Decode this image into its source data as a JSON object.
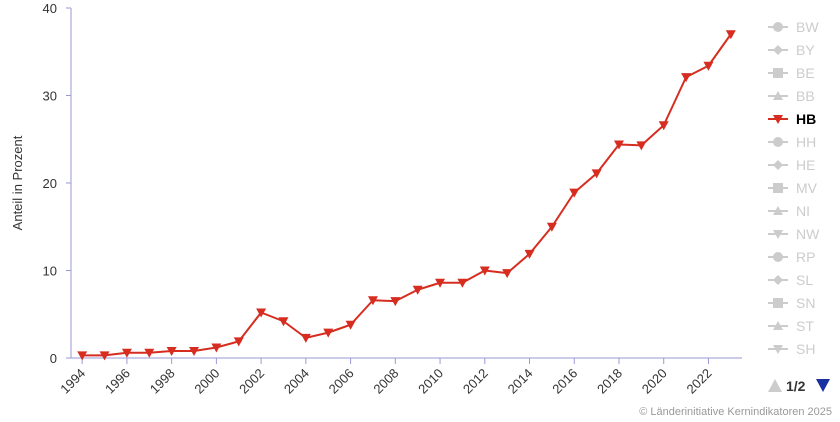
{
  "chart_data": {
    "type": "line",
    "ylabel": "Anteil in Prozent",
    "ylim": [
      0,
      40
    ],
    "yticks": [
      "0",
      "10",
      "20",
      "30",
      "40"
    ],
    "xticks": [
      "1994",
      "1996",
      "1998",
      "2000",
      "2002",
      "2004",
      "2006",
      "2008",
      "2010",
      "2012",
      "2014",
      "2016",
      "2018",
      "2020",
      "2022"
    ],
    "x": [
      1994,
      1995,
      1996,
      1997,
      1998,
      1999,
      2000,
      2001,
      2002,
      2003,
      2004,
      2005,
      2006,
      2007,
      2008,
      2009,
      2010,
      2011,
      2012,
      2013,
      2014,
      2015,
      2016,
      2017,
      2018,
      2019,
      2020,
      2021,
      2022,
      2023
    ],
    "series": [
      {
        "name": "HB",
        "color": "#d62d20",
        "marker": "triangle-down",
        "values": [
          0.3,
          0.3,
          0.6,
          0.6,
          0.8,
          0.8,
          1.2,
          1.9,
          5.2,
          4.2,
          2.3,
          2.9,
          3.8,
          6.6,
          6.5,
          7.8,
          8.6,
          8.6,
          10.0,
          9.7,
          11.9,
          15.0,
          18.9,
          21.1,
          24.4,
          24.3,
          26.6,
          32.1,
          33.4,
          37.0
        ]
      }
    ],
    "legend": {
      "position": "right",
      "page": "1/2",
      "items": [
        {
          "label": "BW",
          "marker": "circle",
          "active": false
        },
        {
          "label": "BY",
          "marker": "diamond",
          "active": false
        },
        {
          "label": "BE",
          "marker": "square",
          "active": false
        },
        {
          "label": "BB",
          "marker": "triangle-up",
          "active": false
        },
        {
          "label": "HB",
          "marker": "triangle-down",
          "active": true
        },
        {
          "label": "HH",
          "marker": "circle",
          "active": false
        },
        {
          "label": "HE",
          "marker": "diamond",
          "active": false
        },
        {
          "label": "MV",
          "marker": "square",
          "active": false
        },
        {
          "label": "NI",
          "marker": "triangle-up",
          "active": false
        },
        {
          "label": "NW",
          "marker": "triangle-down",
          "active": false
        },
        {
          "label": "RP",
          "marker": "circle",
          "active": false
        },
        {
          "label": "SL",
          "marker": "diamond",
          "active": false
        },
        {
          "label": "SN",
          "marker": "square",
          "active": false
        },
        {
          "label": "ST",
          "marker": "triangle-up",
          "active": false
        },
        {
          "label": "SH",
          "marker": "triangle-down",
          "active": false
        }
      ]
    },
    "credit": "© Länderinitiative Kernindikatoren 2025"
  }
}
